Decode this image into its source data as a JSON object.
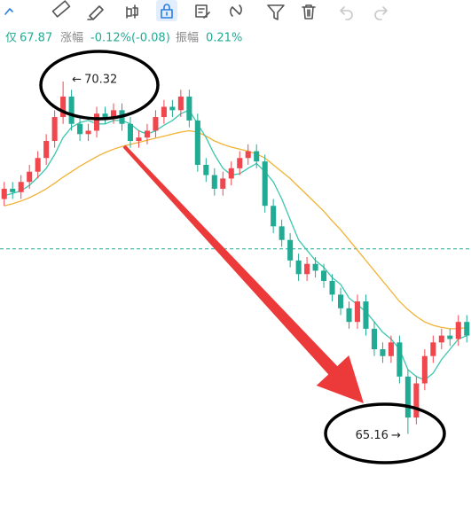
{
  "header": {
    "price_label": "仅",
    "price": "67.87",
    "change_label": "涨幅",
    "change": "-0.12%(-0.08)",
    "amplitude_label": "振幅",
    "amplitude": "0.21%"
  },
  "chart_data": {
    "type": "candlestick",
    "open": [
      68.6,
      68.75,
      68.7,
      68.85,
      69.0,
      69.2,
      69.45,
      69.8,
      70.1,
      69.7,
      69.55,
      69.6,
      69.85,
      69.8,
      69.9,
      69.7,
      69.45,
      69.5,
      69.6,
      69.8,
      69.95,
      69.9,
      70.1,
      69.75,
      69.1,
      68.95,
      68.75,
      68.9,
      69.05,
      69.2,
      69.3,
      69.15,
      68.5,
      68.2,
      68.0,
      67.7,
      67.5,
      67.65,
      67.55,
      67.4,
      67.2,
      67.0,
      66.8,
      67.1,
      66.7,
      66.4,
      66.3,
      66.5,
      66.0,
      65.4,
      65.9,
      66.3,
      66.5,
      66.6,
      66.55,
      66.8
    ],
    "high": [
      68.85,
      68.85,
      68.95,
      69.1,
      69.3,
      69.55,
      69.9,
      70.32,
      70.2,
      69.8,
      69.7,
      69.95,
      69.95,
      70.0,
      70.0,
      69.8,
      69.6,
      69.7,
      69.9,
      70.05,
      70.05,
      70.2,
      70.2,
      69.85,
      69.2,
      69.05,
      69.0,
      69.15,
      69.3,
      69.4,
      69.4,
      69.25,
      68.6,
      68.3,
      68.1,
      67.8,
      67.75,
      67.75,
      67.65,
      67.5,
      67.3,
      67.1,
      67.2,
      67.2,
      66.8,
      66.5,
      66.6,
      66.6,
      66.1,
      66.0,
      66.4,
      66.6,
      66.7,
      66.7,
      66.9,
      66.9
    ],
    "low": [
      68.5,
      68.6,
      68.6,
      68.75,
      68.9,
      69.1,
      69.35,
      69.7,
      69.6,
      69.45,
      69.45,
      69.5,
      69.7,
      69.7,
      69.6,
      69.35,
      69.35,
      69.4,
      69.5,
      69.7,
      69.8,
      69.8,
      69.65,
      69.0,
      68.85,
      68.65,
      68.65,
      68.8,
      68.95,
      69.1,
      69.05,
      68.4,
      68.1,
      67.9,
      67.6,
      67.4,
      67.4,
      67.45,
      67.3,
      67.1,
      66.9,
      66.7,
      66.7,
      66.6,
      66.3,
      66.2,
      66.2,
      65.9,
      65.16,
      65.3,
      65.8,
      66.2,
      66.4,
      66.45,
      66.45,
      66.5
    ],
    "close": [
      68.75,
      68.7,
      68.85,
      69.0,
      69.2,
      69.45,
      69.8,
      70.1,
      69.7,
      69.55,
      69.6,
      69.85,
      69.8,
      69.9,
      69.7,
      69.45,
      69.5,
      69.6,
      69.8,
      69.95,
      69.9,
      70.1,
      69.75,
      69.1,
      68.95,
      68.75,
      68.9,
      69.05,
      69.2,
      69.3,
      69.15,
      68.5,
      68.2,
      68.0,
      67.7,
      67.5,
      67.65,
      67.55,
      67.4,
      67.2,
      67.0,
      66.8,
      67.1,
      66.7,
      66.4,
      66.3,
      66.5,
      66.0,
      65.4,
      65.9,
      66.3,
      66.5,
      66.6,
      66.55,
      66.8,
      66.6
    ],
    "ma_fast": [
      68.65,
      68.68,
      68.72,
      68.8,
      68.92,
      69.05,
      69.25,
      69.5,
      69.65,
      69.72,
      69.75,
      69.7,
      69.7,
      69.75,
      69.75,
      69.7,
      69.6,
      69.55,
      69.6,
      69.68,
      69.75,
      69.85,
      69.9,
      69.7,
      69.5,
      69.25,
      69.05,
      68.95,
      68.97,
      69.05,
      69.12,
      69.0,
      68.85,
      68.6,
      68.3,
      68.0,
      67.85,
      67.7,
      67.6,
      67.45,
      67.35,
      67.15,
      67.05,
      66.95,
      66.8,
      66.65,
      66.55,
      66.4,
      66.1,
      66.0,
      65.95,
      66.05,
      66.25,
      66.4,
      66.55,
      66.6
    ],
    "ma_slow": [
      68.5,
      68.53,
      68.57,
      68.62,
      68.68,
      68.75,
      68.83,
      68.92,
      69.0,
      69.08,
      69.15,
      69.22,
      69.28,
      69.33,
      69.37,
      69.4,
      69.43,
      69.46,
      69.49,
      69.52,
      69.55,
      69.58,
      69.6,
      69.58,
      69.52,
      69.45,
      69.4,
      69.36,
      69.33,
      69.3,
      69.26,
      69.2,
      69.1,
      69.0,
      68.9,
      68.78,
      68.66,
      68.54,
      68.42,
      68.28,
      68.15,
      68.0,
      67.85,
      67.7,
      67.55,
      67.4,
      67.25,
      67.1,
      66.98,
      66.88,
      66.8,
      66.75,
      66.72,
      66.7,
      66.7,
      66.72
    ],
    "price_line": 67.87,
    "up_color": "#f0474f",
    "down_color": "#22ab94",
    "ma_fast_color": "#3cc7ad",
    "ma_slow_color": "#f2b233",
    "price_line_color": "#22ab94",
    "ylim": [
      64.09,
      70.8
    ]
  }
}
